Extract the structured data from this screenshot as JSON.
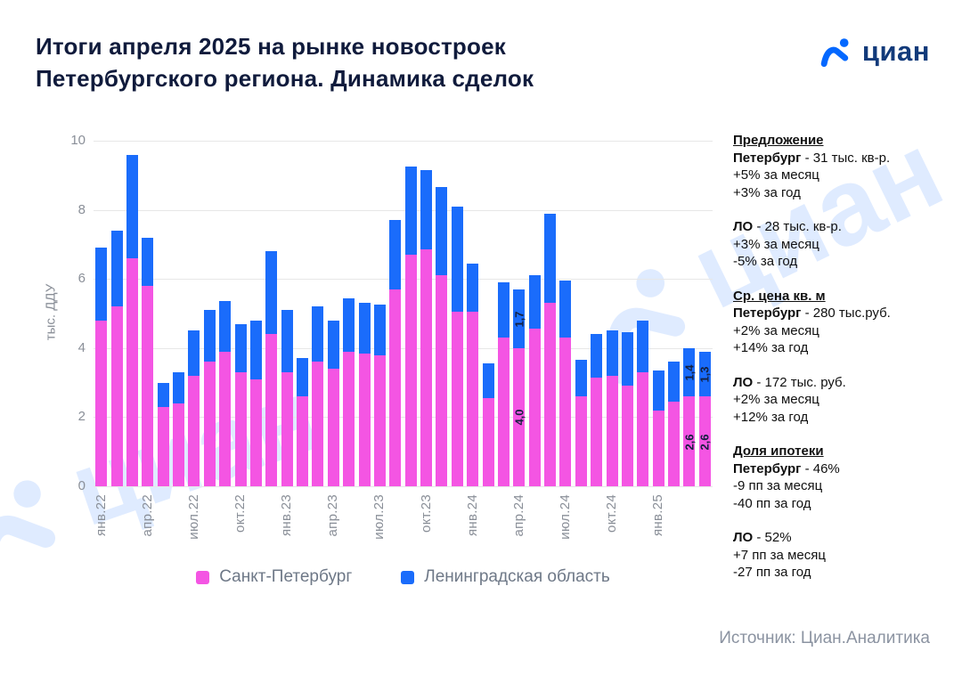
{
  "header": {
    "title_line1": "Итоги апреля 2025 на рынке новостроек",
    "title_line2": "Петербургского региона. Динамика сделок"
  },
  "branding": {
    "logo_text": "циан",
    "watermark_text": "циан",
    "accent_blue": "#0468FF"
  },
  "chart_data": {
    "type": "bar",
    "stacked": true,
    "title": "Итоги апреля 2025 на рынке новостроек Петербургского региона. Динамика сделок",
    "ylabel": "тыс. ДДУ",
    "xlabel": "",
    "ylim": [
      0,
      10
    ],
    "yticks": [
      0,
      2,
      4,
      6,
      8,
      10
    ],
    "grid": "horizontal",
    "legend_position": "bottom",
    "tick_every": 3,
    "categories": [
      "янв.22",
      "фев.22",
      "мар.22",
      "апр.22",
      "май.22",
      "июн.22",
      "июл.22",
      "авг.22",
      "сен.22",
      "окт.22",
      "ноя.22",
      "дек.22",
      "янв.23",
      "фев.23",
      "мар.23",
      "апр.23",
      "май.23",
      "июн.23",
      "июл.23",
      "авг.23",
      "сен.23",
      "окт.23",
      "ноя.23",
      "дек.23",
      "янв.24",
      "фев.24",
      "мар.24",
      "апр.24",
      "май.24",
      "июн.24",
      "июл.24",
      "авг.24",
      "сен.24",
      "окт.24",
      "ноя.24",
      "дек.24",
      "янв.25",
      "фев.25",
      "мар.25",
      "апр.25"
    ],
    "series": [
      {
        "name": "Санкт-Петербург",
        "color": "#F455E3",
        "values": [
          4.8,
          5.2,
          6.6,
          5.8,
          2.3,
          2.4,
          3.2,
          3.6,
          3.9,
          3.3,
          3.1,
          4.4,
          3.3,
          2.6,
          3.6,
          3.4,
          3.9,
          3.85,
          3.8,
          5.7,
          6.7,
          6.85,
          6.1,
          5.05,
          5.05,
          2.55,
          4.3,
          4.0,
          4.55,
          5.3,
          4.3,
          2.6,
          3.15,
          3.2,
          2.9,
          3.3,
          2.2,
          2.45,
          2.6,
          2.6
        ]
      },
      {
        "name": "Ленинградская область",
        "color": "#1A6CFB",
        "values": [
          2.1,
          2.2,
          3.0,
          1.4,
          0.7,
          0.9,
          1.3,
          1.5,
          1.45,
          1.4,
          1.7,
          2.4,
          1.8,
          1.1,
          1.6,
          1.4,
          1.55,
          1.45,
          1.45,
          2.0,
          2.55,
          2.3,
          2.55,
          3.05,
          1.4,
          1.0,
          1.6,
          1.7,
          1.55,
          2.6,
          1.65,
          1.05,
          1.25,
          1.3,
          1.55,
          1.5,
          1.15,
          1.15,
          1.4,
          1.3
        ]
      }
    ],
    "bar_labels": [
      {
        "index": 27,
        "spb": "4,0",
        "lo": "1,7"
      },
      {
        "index": 38,
        "spb": "2,6",
        "lo": "1,4"
      },
      {
        "index": 39,
        "spb": "2,6",
        "lo": "1,3"
      }
    ]
  },
  "side_panel": {
    "blocks": [
      {
        "title": "Предложение",
        "lead": "Петербург",
        "rest": " - 31 тыс. кв-р.",
        "lines": [
          "+5% за месяц",
          "+3% за год"
        ]
      },
      {
        "lead": "ЛО",
        "rest": " - 28 тыс. кв-р.",
        "lines": [
          "+3% за месяц",
          "-5% за год"
        ]
      },
      {
        "title": "Ср. цена кв. м",
        "lead": "Петербург",
        "rest": " - 280 тыс.руб.",
        "lines": [
          "+2% за месяц",
          "+14% за год"
        ]
      },
      {
        "lead": "ЛО",
        "rest": " - 172 тыс. руб.",
        "lines": [
          "+2% за месяц",
          "+12% за год"
        ]
      },
      {
        "title": "Доля ипотеки",
        "lead": "Петербург",
        "rest": " - 46%",
        "lines": [
          "-9 пп за месяц",
          "-40 пп за год"
        ]
      },
      {
        "lead": "ЛО",
        "rest": " - 52%",
        "lines": [
          "+7 пп за месяц",
          "-27 пп за год"
        ]
      }
    ]
  },
  "footer": {
    "source": "Источник: Циан.Аналитика"
  }
}
